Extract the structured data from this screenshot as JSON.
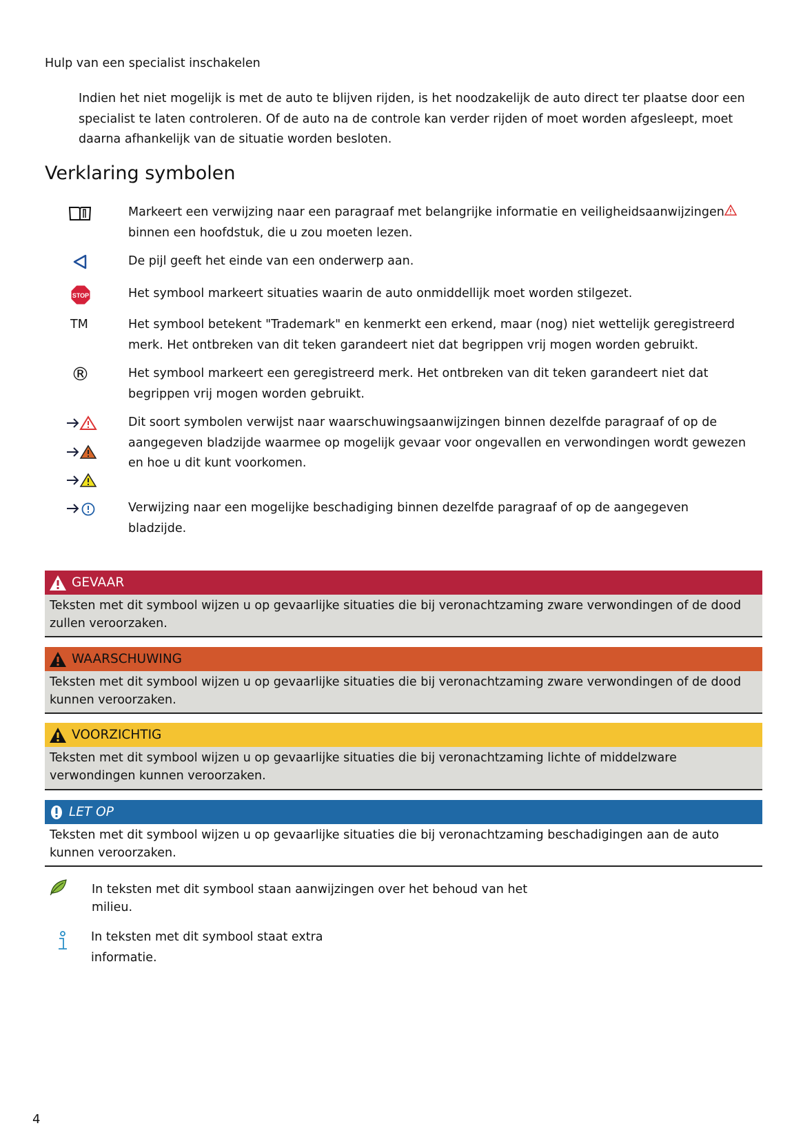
{
  "section_heading": "Hulp van een specialist inschakelen",
  "section_paragraph": [
    "Indien het niet mogelijk is met de auto te blijven rijden, is het noodzakelijk de auto direct ter plaatse door een",
    "specialist te laten controleren. Of de auto na de controle kan verder rijden of moet worden afgesleept, moet",
    "daarna afhankelijk van de situatie worden besloten."
  ],
  "title": "Verklaring symbolen",
  "symbols": [
    {
      "icon": "book-icon",
      "lines": [
        "Markeert een verwijzing naar een paragraaf met belangrijke informatie en veiligheidsaanwijzingen",
        "binnen een hoofdstuk, die u zou moeten lezen."
      ]
    },
    {
      "icon": "end-arrow-icon",
      "lines": [
        "De pijl geeft het einde van een onderwerp aan."
      ]
    },
    {
      "icon": "stop-sign-icon",
      "icon_text": "STOP",
      "lines": [
        "Het symbool markeert situaties waarin de auto onmiddellijk moet worden stilgezet."
      ]
    },
    {
      "icon": "trademark-icon",
      "icon_text": "TM",
      "lines": [
        "Het symbool betekent \"Trademark\" en kenmerkt een erkend, maar (nog) niet wettelijk geregistreerd",
        "merk. Het ontbreken van dit teken garandeert niet dat begrippen vrij mogen worden gebruikt."
      ]
    },
    {
      "icon": "registered-icon",
      "icon_text": "®",
      "lines": [
        "Het symbool markeert een geregistreerd merk. Het ontbreken van dit teken garandeert niet dat",
        "begrippen vrij mogen worden gebruikt."
      ]
    },
    {
      "icon": "warning-reference-icons",
      "lines": [
        "Dit soort symbolen verwijst naar waarschuwingsaanwijzingen binnen dezelfde paragraaf of op de",
        "aangegeven bladzijde waarmee op mogelijk gevaar voor ongevallen en verwondingen wordt gewezen",
        "en hoe u dit kunt voorkomen."
      ]
    },
    {
      "icon": "damage-reference-icon",
      "lines": [
        "Verwijzing naar een mogelijke beschadiging binnen dezelfde paragraaf of op de aangegeven",
        "bladzijde."
      ]
    }
  ],
  "notices": [
    {
      "label": "GEVAAR",
      "color": "#b5223c",
      "text": "Teksten met dit symbool wijzen u op gevaarlijke situaties die bij veronachtzaming zware verwondingen of de dood zullen veroorzaken."
    },
    {
      "label": "WAARSCHUWING",
      "color": "#d2572c",
      "text": "Teksten met dit symbool wijzen u op gevaarlijke situaties die bij veronachtzaming zware verwondingen of de dood kunnen veroorzaken."
    },
    {
      "label": "VOORZICHTIG",
      "color": "#f4c331",
      "text": "Teksten met dit symbool wijzen u op gevaarlijke situaties die bij veronachtzaming lichte of middelzware verwondingen kunnen veroorzaken."
    },
    {
      "label": "LET OP",
      "color": "#1f69a6",
      "text": "Teksten met dit symbool wijzen u op gevaarlijke situaties die bij veronachtzaming beschadigingen aan de auto kunnen veroorzaken."
    }
  ],
  "environment": {
    "icon": "leaf-icon",
    "lines": [
      "In teksten met dit symbool staan aanwijzingen over het behoud van het",
      "milieu."
    ]
  },
  "info": {
    "icon": "info-icon",
    "lines": [
      "In teksten met dit symbool staat extra",
      "informatie."
    ]
  },
  "page_number": "4"
}
